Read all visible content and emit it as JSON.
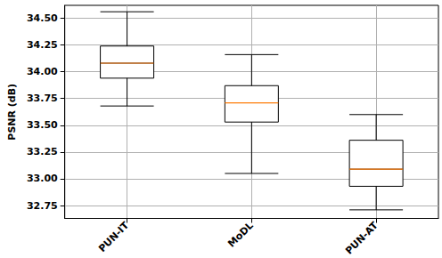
{
  "chart_data": {
    "type": "boxplot",
    "y_label": "PSNR (dB)",
    "categories": [
      "PUN-IT",
      "MoDL",
      "PUN-AT"
    ],
    "values": [
      [
        33.68,
        33.94,
        34.08,
        34.24,
        34.56
      ],
      [
        33.05,
        33.53,
        33.71,
        33.87,
        34.16
      ],
      [
        32.71,
        32.93,
        33.09,
        33.36,
        33.6
      ]
    ],
    "color": "#000000",
    "ylim": [
      32.63,
      34.62
    ],
    "yticks": [
      {
        "value": 32.75,
        "label": "32.75"
      },
      {
        "value": 33,
        "label": "33.00"
      },
      {
        "value": 33.25,
        "label": "33.25"
      },
      {
        "value": 33.5,
        "label": "33.50"
      },
      {
        "value": 33.75,
        "label": "33.75"
      },
      {
        "value": 34,
        "label": "34.00"
      },
      {
        "value": 34.25,
        "label": "34.25"
      },
      {
        "value": 34.5,
        "label": "34.50"
      }
    ],
    "grid": true
  }
}
